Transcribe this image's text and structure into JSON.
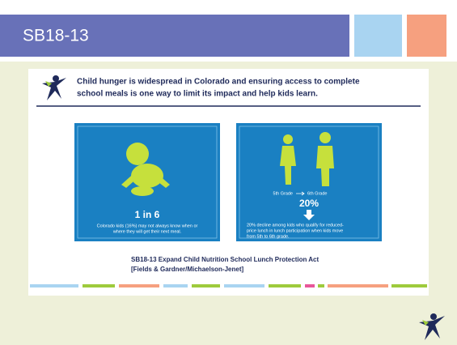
{
  "header": {
    "title": "SB18-13"
  },
  "slide": {
    "headline": [
      "Child hunger is widespread in Colorado and ensuring access to complete",
      "school meals is one way to limit its impact and help kids learn."
    ],
    "left_panel": {
      "stat": "1 in 6",
      "caption": [
        "Colorado kids (16%) may not always know when or",
        "where they will get their next meal."
      ]
    },
    "right_panel": {
      "from_label": "5th Grade",
      "to_label": "6th Grade",
      "stat": "20%",
      "caption": [
        "20% decline among kids who qualify for reduced-",
        "price lunch in lunch participation when kids move",
        "from 5th to 6th grade."
      ]
    },
    "footer": [
      "SB18-13 Expand Child Nutrition School Lunch Protection Act",
      "[Fields & Gardner/Michaelson-Jenet]"
    ]
  }
}
